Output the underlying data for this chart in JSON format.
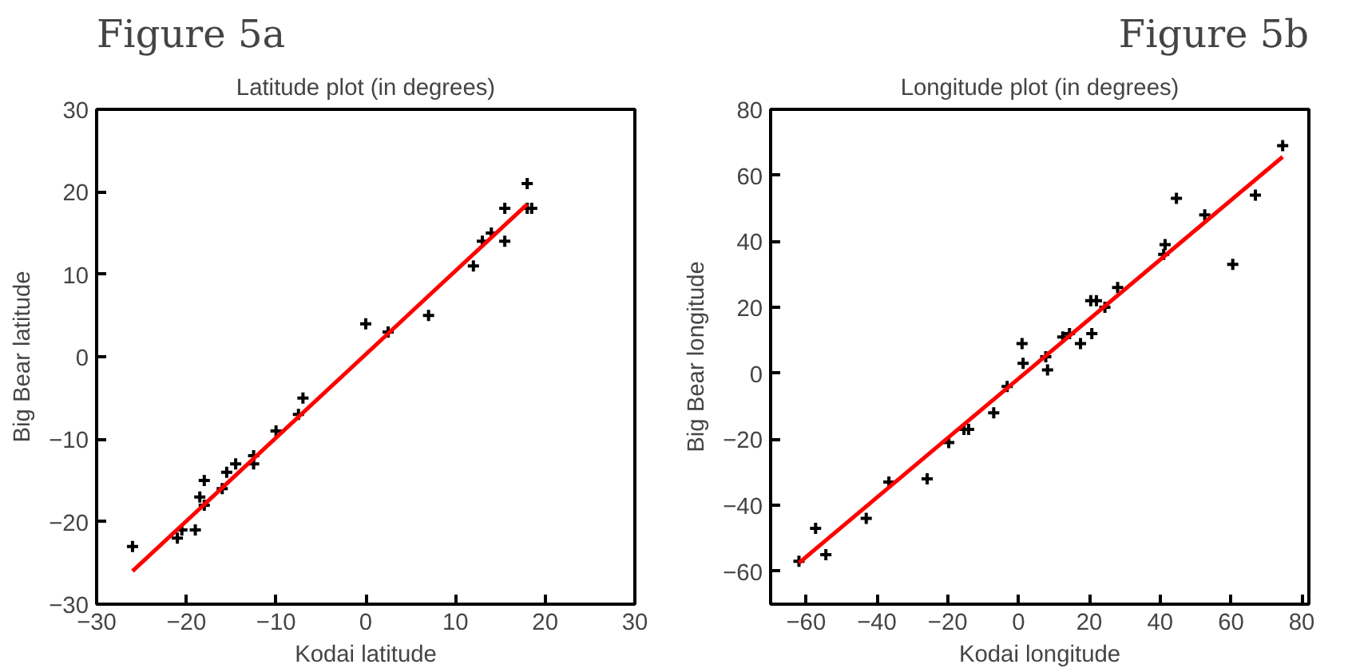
{
  "chart_data": [
    {
      "type": "scatter",
      "title": "Figure 5a",
      "subtitle": "Latitude plot (in degrees)",
      "xlabel": "Kodai latitude",
      "ylabel": "Big Bear latitude",
      "xlim": [
        -30,
        30
      ],
      "ylim": [
        -30,
        30
      ],
      "xticks": [
        -30,
        -20,
        -10,
        0,
        10,
        20,
        30
      ],
      "yticks": [
        -30,
        -20,
        -10,
        0,
        10,
        20,
        30
      ],
      "grid": false,
      "series": [
        {
          "marker": "cross",
          "color": "#000000",
          "x": [
            -26,
            -21,
            -20.5,
            -19,
            -18.5,
            -18,
            -18,
            -16,
            -15.5,
            -14.5,
            -12.5,
            -12.5,
            -10,
            -7.5,
            -7,
            0,
            2.5,
            7,
            12,
            13,
            14,
            15.5,
            15.5,
            18,
            18.5,
            18
          ],
          "values": [
            -23,
            -22,
            -21,
            -21,
            -17,
            -18,
            -15,
            -16,
            -14,
            -13,
            -13,
            -12,
            -9,
            -7,
            -5,
            4,
            3,
            5,
            11,
            14,
            15,
            14,
            18,
            18,
            18,
            21
          ]
        },
        {
          "type": "line",
          "marker": "none",
          "color": "#ff0000",
          "x": [
            -26,
            18
          ],
          "values": [
            -26,
            18.5
          ]
        }
      ]
    },
    {
      "type": "scatter",
      "title": "Figure 5b",
      "subtitle": "Longitude plot (in degrees)",
      "xlabel": "Kodai longitude",
      "ylabel": "Big Bear longitude",
      "xlim": [
        -70,
        82
      ],
      "ylim": [
        -70,
        80
      ],
      "xticks": [
        -60,
        -40,
        -20,
        0,
        20,
        40,
        60,
        80
      ],
      "yticks": [
        -60,
        -40,
        -20,
        0,
        20,
        40,
        60,
        80
      ],
      "grid": false,
      "series": [
        {
          "marker": "cross",
          "color": "#000000",
          "x": [
            -62,
            -57.3,
            -54.4,
            -43,
            -36.6,
            -25.8,
            -19.7,
            -15.4,
            -14.1,
            -7,
            -3.2,
            1,
            1.3,
            7.7,
            8.2,
            12.5,
            14.4,
            17.5,
            20.7,
            20.4,
            22,
            24.4,
            28,
            41,
            41.4,
            44.6,
            52.6,
            60.5,
            66.9,
            74.6
          ],
          "values": [
            -57,
            -47,
            -55,
            -44,
            -33,
            -32,
            -21,
            -17,
            -17,
            -12,
            -4,
            9,
            3,
            5,
            1,
            11,
            12,
            9,
            12,
            22,
            22,
            20,
            26,
            36,
            39,
            53,
            48,
            33,
            54,
            69
          ]
        },
        {
          "type": "line",
          "marker": "none",
          "color": "#ff0000",
          "x": [
            -62,
            74.6
          ],
          "values": [
            -57.5,
            65.6
          ]
        }
      ]
    }
  ]
}
